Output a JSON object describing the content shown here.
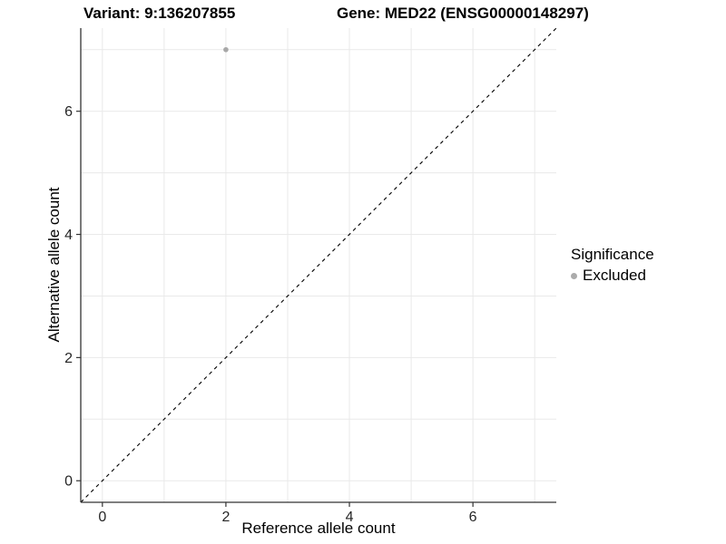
{
  "figure": {
    "background": "#ffffff",
    "titles": {
      "left": "Variant: 9:136207855",
      "right": "Gene: MED22 (ENSG00000148297)"
    }
  },
  "chart_data": {
    "type": "scatter",
    "title_left": "Variant: 9:136207855",
    "title_right": "Gene: MED22 (ENSG00000148297)",
    "xlabel": "Reference allele count",
    "ylabel": "Alternative allele count",
    "xlim": [
      -0.35,
      7.35
    ],
    "ylim": [
      -0.35,
      7.35
    ],
    "xticks": [
      0,
      2,
      4,
      6
    ],
    "yticks": [
      0,
      2,
      4,
      6
    ],
    "grid": {
      "show": true,
      "interval": 1,
      "color": "#e9e9e9"
    },
    "points": [
      {
        "x": 2,
        "y": 7,
        "series": "Excluded",
        "color": "#a8a8a8",
        "radius": 2.8
      }
    ],
    "identity_line": {
      "style": "dashed",
      "color": "#000000",
      "from": [
        -0.35,
        -0.35
      ],
      "to": [
        7.35,
        7.35
      ]
    },
    "axes": {
      "line_color": "#333333",
      "tick_color": "#333333",
      "tick_label_color": "#262626"
    },
    "legend": {
      "title": "Significance",
      "position": "right",
      "entries": [
        {
          "label": "Excluded",
          "color": "#ababab",
          "marker": "circle"
        }
      ]
    }
  }
}
